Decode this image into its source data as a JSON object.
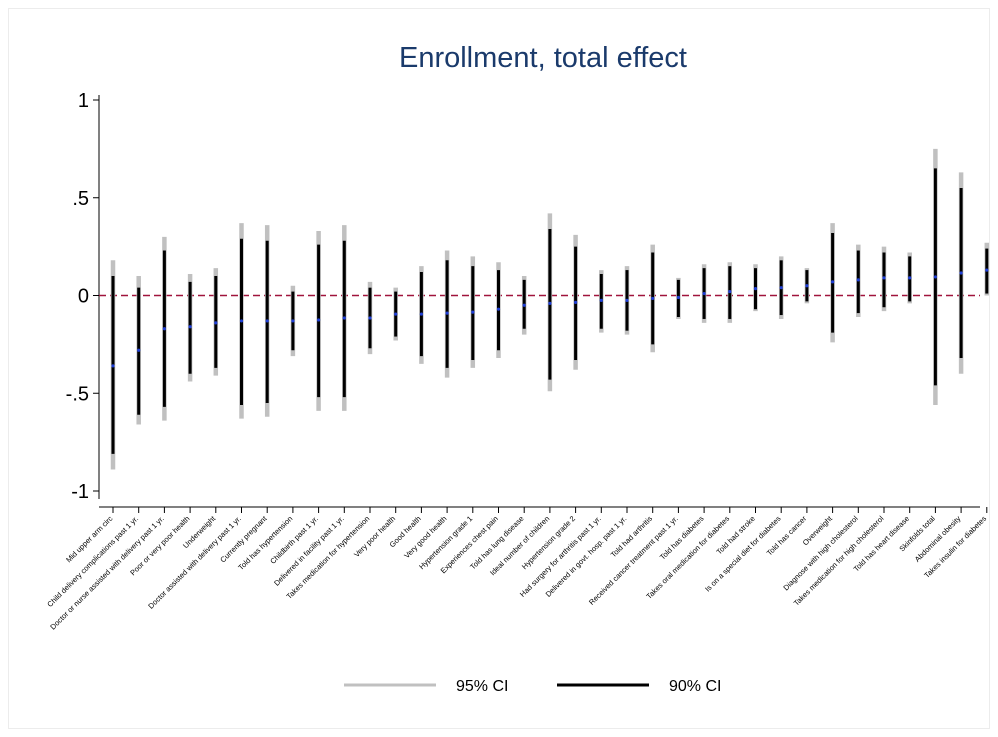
{
  "chart_data": {
    "type": "coefficient-plot",
    "title": "Enrollment, total effect",
    "ylim": [
      -1.1,
      1.05
    ],
    "yticks": [
      {
        "value": 1,
        "label": "1"
      },
      {
        "value": 0.5,
        "label": ".5"
      },
      {
        "value": 0,
        "label": "0"
      },
      {
        "value": -0.5,
        "label": "-.5"
      },
      {
        "value": -1,
        "label": "-1"
      }
    ],
    "reference_line": 0,
    "colors": {
      "ci95": "#c0c0c0",
      "ci90": "#000000",
      "point": "#1f3fd4",
      "ref": "#a0143c",
      "title": "#1a3a6b"
    },
    "legend": [
      {
        "label": "95% CI",
        "color": "#c0c0c0"
      },
      {
        "label": "90% CI",
        "color": "#000000"
      }
    ],
    "legend_position": "bottom",
    "categories": [
      "Mid upper arm circ",
      "Child delivery complications past 1 yr.",
      "Doctor or nurse assisted with delivery past 1 yr.",
      "Poor or very poor health",
      "Underweight",
      "Doctor assisted with delivery past 1 yr.",
      "Currently pregnant",
      "Told has hypertension",
      "Childbirth past 1 yr.",
      "Delivered in facility past 1 yr.",
      "Takes medication for hypertension",
      "Very poor health",
      "Good health",
      "Very good health",
      "Hypertension grade 1",
      "Experiences chest pain",
      "Told has lung disease",
      "Ideal number of children",
      "Hypertension grade 2",
      "Had surgery for arthritis past 1 yr.",
      "Delivered in govt. hosp. past 1 yr.",
      "Told had arthritis",
      "Received cancer treatment past 1 yr.",
      "Told has diabetes",
      "Takes oral medication for diabetes",
      "Told had stroke",
      "Is on a special diet for diabetes",
      "Told has cancer",
      "Overweight",
      "Diagnose with high cholesterol",
      "Takes medication for high cholesterol",
      "Told has heart disease",
      "Skinfolds total",
      "Abdominal obesity",
      "Takes insulin for diabetes"
    ],
    "estimates": [
      -0.36,
      -0.28,
      -0.17,
      -0.16,
      -0.14,
      -0.13,
      -0.13,
      -0.13,
      -0.125,
      -0.115,
      -0.115,
      -0.095,
      -0.095,
      -0.09,
      -0.085,
      -0.07,
      -0.05,
      -0.04,
      -0.035,
      -0.025,
      -0.025,
      -0.015,
      -0.01,
      0.01,
      0.02,
      0.035,
      0.04,
      0.05,
      0.07,
      0.08,
      0.09,
      0.09,
      0.095,
      0.115,
      0.13
    ],
    "ci95_low": [
      -0.89,
      -0.66,
      -0.64,
      -0.44,
      -0.41,
      -0.63,
      -0.62,
      -0.31,
      -0.59,
      -0.59,
      -0.3,
      -0.23,
      -0.35,
      -0.42,
      -0.37,
      -0.32,
      -0.2,
      -0.49,
      -0.38,
      -0.19,
      -0.2,
      -0.29,
      -0.12,
      -0.14,
      -0.14,
      -0.08,
      -0.12,
      -0.04,
      -0.24,
      -0.11,
      -0.08,
      -0.04,
      -0.56,
      -0.4,
      0.0
    ],
    "ci95_high": [
      0.18,
      0.1,
      0.3,
      0.11,
      0.14,
      0.37,
      0.36,
      0.05,
      0.33,
      0.36,
      0.07,
      0.04,
      0.15,
      0.23,
      0.2,
      0.17,
      0.1,
      0.42,
      0.31,
      0.13,
      0.15,
      0.26,
      0.09,
      0.16,
      0.17,
      0.16,
      0.2,
      0.14,
      0.37,
      0.26,
      0.25,
      0.22,
      0.75,
      0.63,
      0.27
    ],
    "ci90_low": [
      -0.81,
      -0.61,
      -0.57,
      -0.4,
      -0.37,
      -0.56,
      -0.55,
      -0.28,
      -0.52,
      -0.52,
      -0.27,
      -0.21,
      -0.31,
      -0.37,
      -0.33,
      -0.28,
      -0.17,
      -0.43,
      -0.33,
      -0.17,
      -0.18,
      -0.25,
      -0.11,
      -0.12,
      -0.12,
      -0.07,
      -0.1,
      -0.03,
      -0.19,
      -0.09,
      -0.06,
      -0.03,
      -0.46,
      -0.32,
      0.01
    ],
    "ci90_high": [
      0.1,
      0.04,
      0.23,
      0.07,
      0.1,
      0.29,
      0.28,
      0.02,
      0.26,
      0.28,
      0.04,
      0.02,
      0.12,
      0.18,
      0.15,
      0.13,
      0.08,
      0.34,
      0.25,
      0.11,
      0.13,
      0.22,
      0.08,
      0.14,
      0.15,
      0.14,
      0.18,
      0.13,
      0.32,
      0.23,
      0.22,
      0.2,
      0.65,
      0.55,
      0.24
    ]
  }
}
